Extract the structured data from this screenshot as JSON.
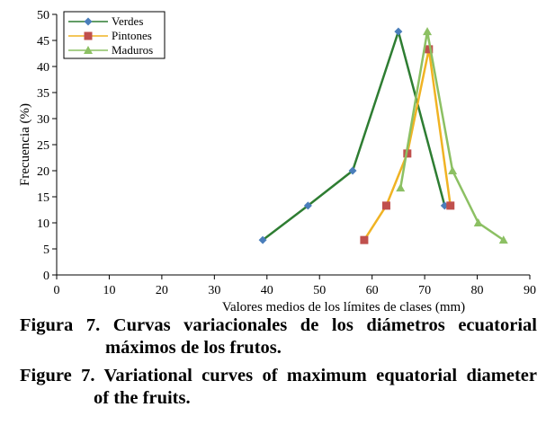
{
  "chart_data": {
    "type": "line",
    "xlabel": "Valores medios de los límites de clases (mm)",
    "ylabel": "Frecuencia (%)",
    "xlim": [
      0,
      90
    ],
    "ylim": [
      0,
      50
    ],
    "xticks": [
      "0",
      "10",
      "20",
      "30",
      "40",
      "50",
      "60",
      "70",
      "80",
      "90"
    ],
    "yticks": [
      "0",
      "5",
      "10",
      "15",
      "20",
      "25",
      "30",
      "35",
      "40",
      "45",
      "50"
    ],
    "legend_position": "top-left",
    "grid": false,
    "series": [
      {
        "name": "Verdes",
        "color": "#2e7d32",
        "marker": "diamond",
        "marker_color": "#4a7ebb",
        "x": [
          39.2,
          47.8,
          56.3,
          65.0,
          73.8
        ],
        "y": [
          6.7,
          13.3,
          20.0,
          46.7,
          13.3
        ]
      },
      {
        "name": "Pintones",
        "color": "#f0b323",
        "marker": "square",
        "marker_color": "#c0504d",
        "x": [
          58.5,
          62.7,
          66.7,
          70.8,
          74.9
        ],
        "y": [
          6.7,
          13.3,
          23.3,
          43.3,
          13.3
        ]
      },
      {
        "name": "Maduros",
        "color": "#8cc063",
        "marker": "triangle",
        "marker_color": "#8cc063",
        "x": [
          65.4,
          70.5,
          75.3,
          80.2,
          85.0
        ],
        "y": [
          16.7,
          46.7,
          20.0,
          10.0,
          6.7
        ]
      }
    ]
  },
  "captions": {
    "es_line1": "Figura 7. Curvas variacionales de los diámetros ecuatorial",
    "es_line2": "máximos de los frutos.",
    "en_line1": "Figure 7. Variational curves of maximum equatorial diameter",
    "en_line2": "of the fruits."
  }
}
